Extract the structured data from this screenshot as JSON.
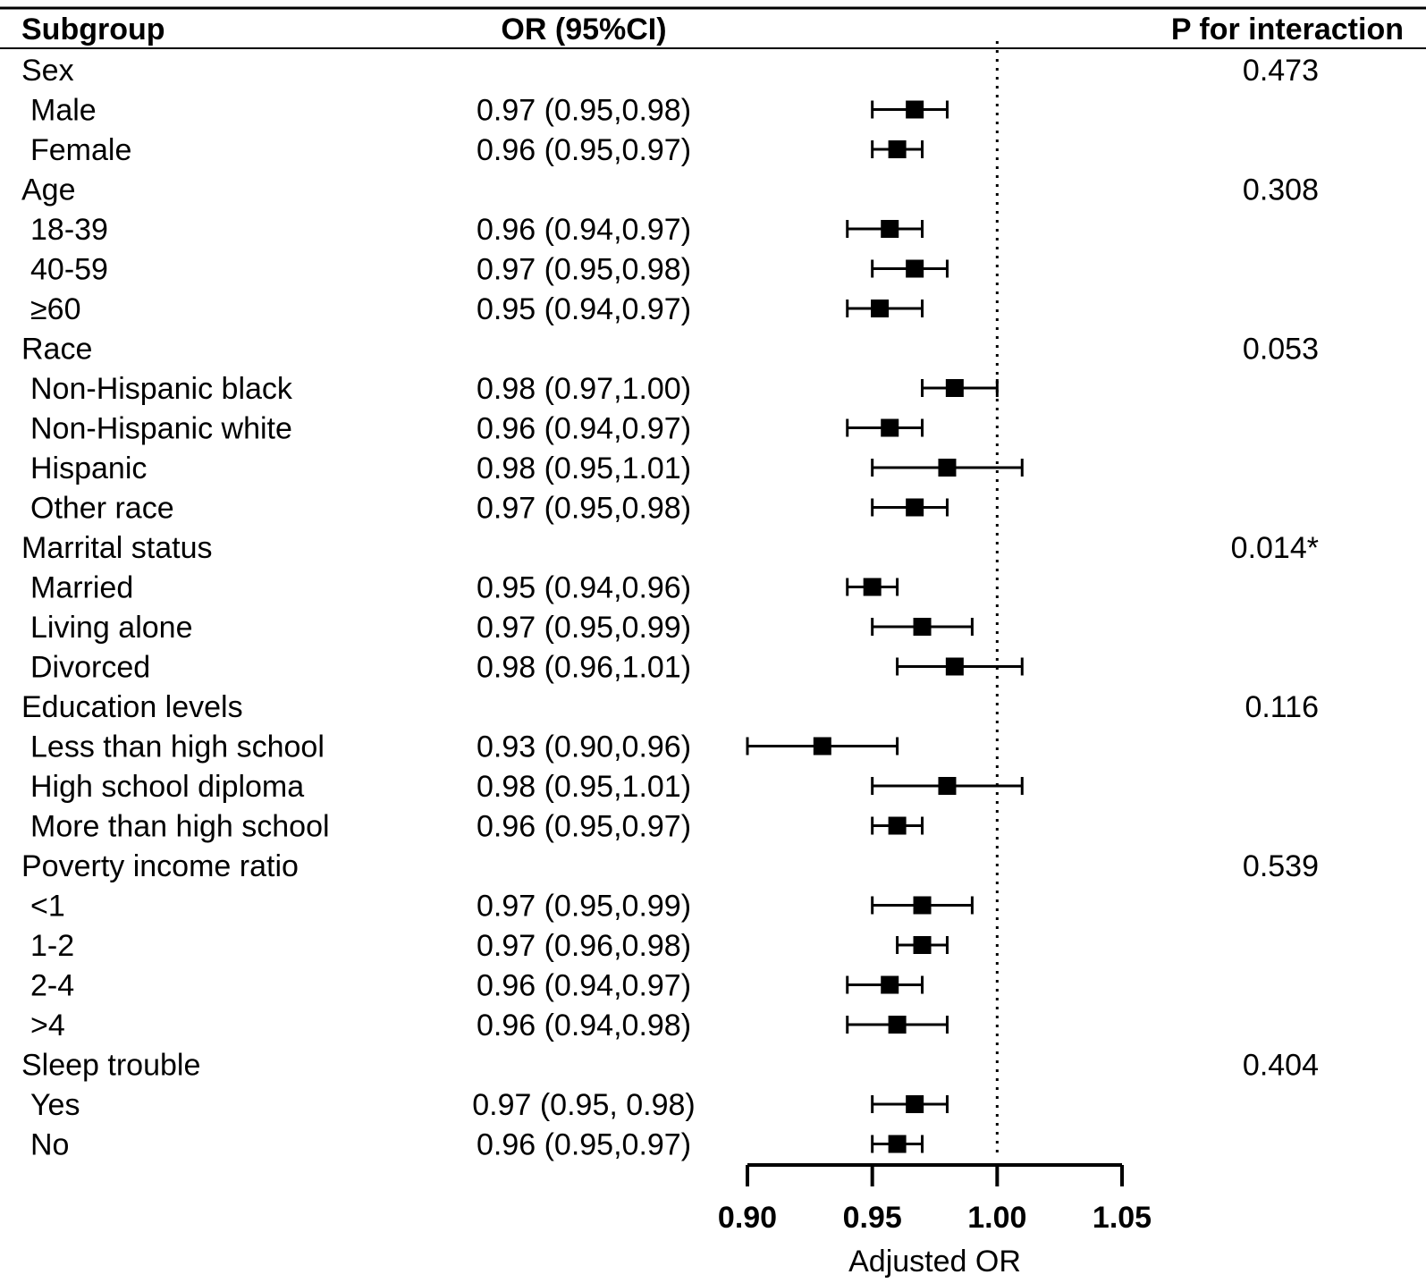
{
  "chart_data": {
    "type": "forest",
    "headers": {
      "subgroup": "Subgroup",
      "or_ci": "OR (95%CI)",
      "p_interaction": "P for interaction"
    },
    "x_axis": {
      "title": "Adjusted OR",
      "range": [
        0.9,
        1.05
      ],
      "ticks": [
        0.9,
        0.95,
        1.0,
        1.05
      ],
      "tick_labels": [
        "0.90",
        "0.95",
        "1.00",
        "1.05"
      ],
      "reference_line": 1.0
    },
    "rows": [
      {
        "kind": "group",
        "label": "Sex",
        "p": "0.473"
      },
      {
        "kind": "sub",
        "label": "Male",
        "ci_text": "0.97 (0.95,0.98)",
        "or": 0.967,
        "lo": 0.95,
        "hi": 0.98
      },
      {
        "kind": "sub",
        "label": "Female",
        "ci_text": "0.96 (0.95,0.97)",
        "or": 0.96,
        "lo": 0.95,
        "hi": 0.97
      },
      {
        "kind": "group",
        "label": "Age",
        "p": "0.308"
      },
      {
        "kind": "sub",
        "label": "18-39",
        "ci_text": "0.96 (0.94,0.97)",
        "or": 0.957,
        "lo": 0.94,
        "hi": 0.97
      },
      {
        "kind": "sub",
        "label": "40-59",
        "ci_text": "0.97 (0.95,0.98)",
        "or": 0.967,
        "lo": 0.95,
        "hi": 0.98
      },
      {
        "kind": "sub",
        "label": "≥60",
        "ci_text": "0.95 (0.94,0.97)",
        "or": 0.953,
        "lo": 0.94,
        "hi": 0.97
      },
      {
        "kind": "group",
        "label": "Race",
        "p": "0.053"
      },
      {
        "kind": "sub",
        "label": "Non-Hispanic black",
        "ci_text": "0.98 (0.97,1.00)",
        "or": 0.983,
        "lo": 0.97,
        "hi": 1.0
      },
      {
        "kind": "sub",
        "label": "Non-Hispanic white",
        "ci_text": "0.96 (0.94,0.97)",
        "or": 0.957,
        "lo": 0.94,
        "hi": 0.97
      },
      {
        "kind": "sub",
        "label": "Hispanic",
        "ci_text": "0.98 (0.95,1.01)",
        "or": 0.98,
        "lo": 0.95,
        "hi": 1.01
      },
      {
        "kind": "sub",
        "label": "Other race",
        "ci_text": "0.97 (0.95,0.98)",
        "or": 0.967,
        "lo": 0.95,
        "hi": 0.98
      },
      {
        "kind": "group",
        "label": "Marrital status",
        "p": "0.014*"
      },
      {
        "kind": "sub",
        "label": "Married",
        "ci_text": "0.95 (0.94,0.96)",
        "or": 0.95,
        "lo": 0.94,
        "hi": 0.96
      },
      {
        "kind": "sub",
        "label": "Living alone",
        "ci_text": "0.97 (0.95,0.99)",
        "or": 0.97,
        "lo": 0.95,
        "hi": 0.99
      },
      {
        "kind": "sub",
        "label": "Divorced",
        "ci_text": "0.98 (0.96,1.01)",
        "or": 0.983,
        "lo": 0.96,
        "hi": 1.01
      },
      {
        "kind": "group",
        "label": "Education levels",
        "p": "0.116"
      },
      {
        "kind": "sub",
        "label": "Less than high school",
        "ci_text": "0.93 (0.90,0.96)",
        "or": 0.93,
        "lo": 0.9,
        "hi": 0.96
      },
      {
        "kind": "sub",
        "label": "High school diploma",
        "ci_text": "0.98 (0.95,1.01)",
        "or": 0.98,
        "lo": 0.95,
        "hi": 1.01
      },
      {
        "kind": "sub",
        "label": "More than high school",
        "ci_text": "0.96 (0.95,0.97)",
        "or": 0.96,
        "lo": 0.95,
        "hi": 0.97
      },
      {
        "kind": "group",
        "label": "Poverty income ratio",
        "p": "0.539"
      },
      {
        "kind": "sub",
        "label": "<1",
        "ci_text": "0.97 (0.95,0.99)",
        "or": 0.97,
        "lo": 0.95,
        "hi": 0.99
      },
      {
        "kind": "sub",
        "label": "1-2",
        "ci_text": "0.97 (0.96,0.98)",
        "or": 0.97,
        "lo": 0.96,
        "hi": 0.98
      },
      {
        "kind": "sub",
        "label": "2-4",
        "ci_text": "0.96 (0.94,0.97)",
        "or": 0.957,
        "lo": 0.94,
        "hi": 0.97
      },
      {
        "kind": "sub",
        "label": ">4",
        "ci_text": "0.96 (0.94,0.98)",
        "or": 0.96,
        "lo": 0.94,
        "hi": 0.98
      },
      {
        "kind": "group",
        "label": "Sleep trouble",
        "p": "0.404"
      },
      {
        "kind": "sub",
        "label": "Yes",
        "ci_text": "0.97 (0.95, 0.98)",
        "or": 0.967,
        "lo": 0.95,
        "hi": 0.98
      },
      {
        "kind": "sub",
        "label": "No",
        "ci_text": "0.96 (0.95,0.97)",
        "or": 0.96,
        "lo": 0.95,
        "hi": 0.97
      }
    ]
  }
}
